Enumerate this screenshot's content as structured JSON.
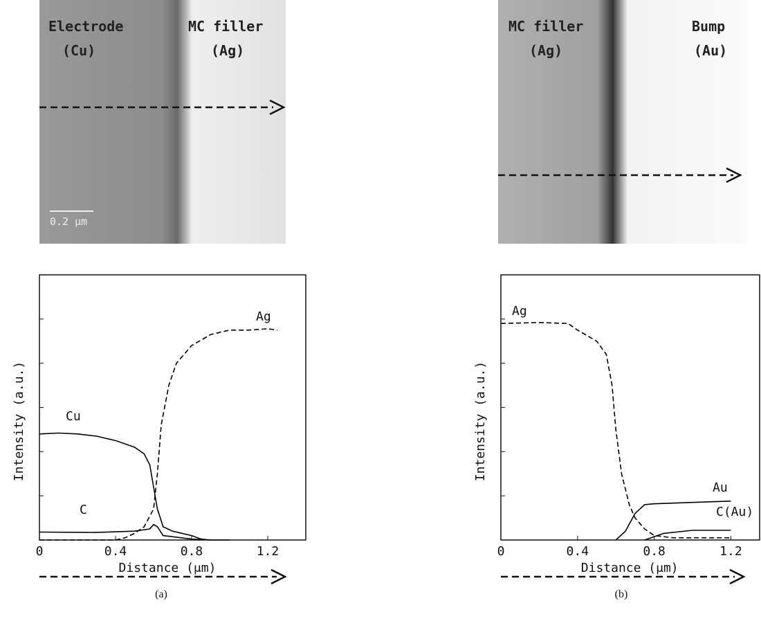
{
  "panels": [
    {
      "labels": [
        "Electrode",
        "(Cu)",
        "MC filler",
        "(Ag)"
      ],
      "scale_bar": "0.2 μm",
      "caption": "(a)"
    },
    {
      "labels": [
        "MC filler",
        "(Ag)",
        "Bump",
        "(Au)"
      ],
      "caption": "(b)"
    }
  ],
  "chart_data": [
    {
      "type": "line",
      "xlabel": "Distance (μm)",
      "ylabel": "Intensity (a.u.)",
      "xlim": [
        0,
        1.4
      ],
      "xticks": [
        0,
        0.4,
        0.8,
        1.2
      ],
      "ylim": [
        0,
        6
      ],
      "yticks": [
        0,
        1,
        2,
        3,
        4,
        5,
        6
      ],
      "series": [
        {
          "name": "Ag",
          "color": "#000000",
          "dashed": true,
          "x": [
            0,
            0.2,
            0.4,
            0.45,
            0.5,
            0.55,
            0.6,
            0.62,
            0.64,
            0.68,
            0.72,
            0.8,
            0.9,
            1.0,
            1.1,
            1.2,
            1.25
          ],
          "values": [
            0,
            0,
            0,
            0.05,
            0.15,
            0.3,
            0.7,
            1.5,
            2.6,
            3.5,
            4.0,
            4.4,
            4.65,
            4.75,
            4.75,
            4.78,
            4.75
          ]
        },
        {
          "name": "Cu",
          "color": "#000000",
          "dashed": false,
          "x": [
            0,
            0.1,
            0.2,
            0.3,
            0.4,
            0.5,
            0.55,
            0.58,
            0.6,
            0.62,
            0.65,
            0.7,
            0.8,
            0.85,
            0.9,
            1.0
          ],
          "values": [
            2.4,
            2.42,
            2.4,
            2.35,
            2.25,
            2.1,
            1.95,
            1.7,
            1.2,
            0.7,
            0.3,
            0.2,
            0.1,
            0.02,
            0,
            0
          ]
        },
        {
          "name": "C",
          "color": "#000000",
          "dashed": false,
          "x": [
            0,
            0.3,
            0.5,
            0.58,
            0.6,
            0.62,
            0.65,
            0.8,
            0.9
          ],
          "values": [
            0.18,
            0.17,
            0.2,
            0.25,
            0.35,
            0.3,
            0.1,
            0.02,
            0
          ]
        }
      ]
    },
    {
      "type": "line",
      "xlabel": "Distance (μm)",
      "ylabel": "Intensity (a.u.)",
      "xlim": [
        0,
        1.35
      ],
      "xticks": [
        0,
        0.4,
        0.8,
        1.2
      ],
      "ylim": [
        0,
        6
      ],
      "yticks": [
        0,
        1,
        2,
        3,
        4,
        5,
        6
      ],
      "series": [
        {
          "name": "Ag",
          "color": "#000000",
          "dashed": true,
          "x": [
            0,
            0.2,
            0.35,
            0.4,
            0.5,
            0.55,
            0.58,
            0.6,
            0.63,
            0.67,
            0.7,
            0.75,
            0.8,
            0.9,
            1.2
          ],
          "values": [
            4.9,
            4.92,
            4.9,
            4.75,
            4.5,
            4.2,
            3.5,
            2.5,
            1.5,
            0.8,
            0.5,
            0.25,
            0.1,
            0.05,
            0.05
          ]
        },
        {
          "name": "Au",
          "color": "#000000",
          "dashed": false,
          "x": [
            0.6,
            0.65,
            0.7,
            0.75,
            0.8,
            1.0,
            1.2
          ],
          "values": [
            0,
            0.2,
            0.6,
            0.8,
            0.82,
            0.85,
            0.88
          ]
        },
        {
          "name": "C(Au)",
          "color": "#000000",
          "dashed": false,
          "x": [
            0.75,
            0.85,
            1.0,
            1.2
          ],
          "values": [
            0,
            0.15,
            0.22,
            0.22
          ]
        }
      ]
    }
  ]
}
